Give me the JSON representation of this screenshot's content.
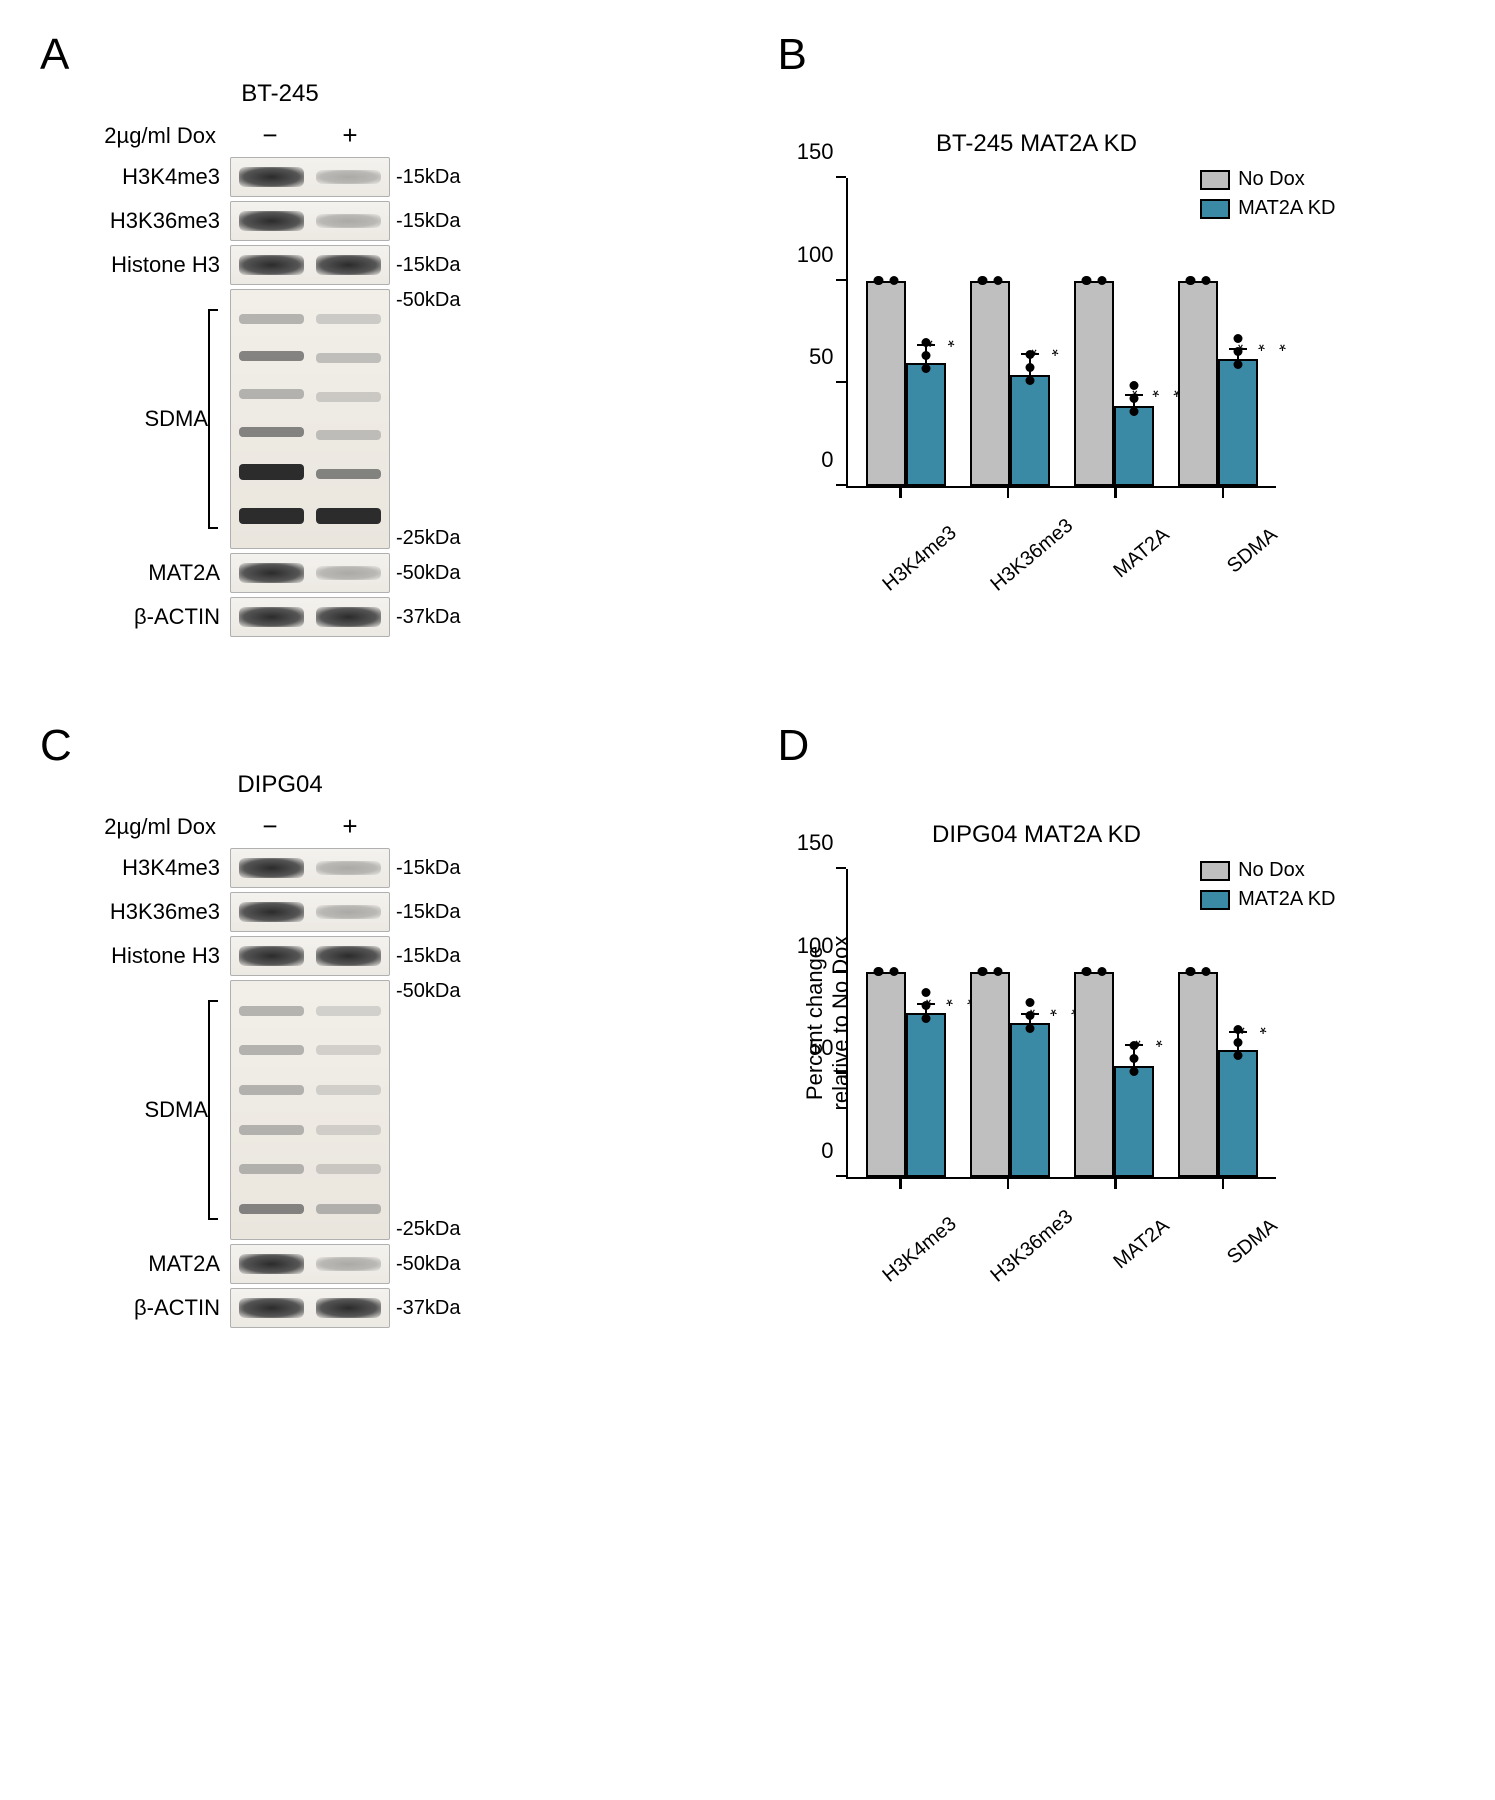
{
  "panels": {
    "A": {
      "letter": "A",
      "cell_line": "BT-245",
      "dox_header": "2µg/ml Dox",
      "minus": "−",
      "plus": "+",
      "rows": [
        {
          "label": "H3K4me3",
          "size": "-15kDa",
          "kd_faint": true
        },
        {
          "label": "H3K36me3",
          "size": "-15kDa",
          "kd_faint": true
        },
        {
          "label": "Histone H3",
          "size": "-15kDa",
          "kd_faint": false
        }
      ],
      "sdma_label": "SDMA",
      "sdma_top": "-50kDa",
      "sdma_bottom": "-25kDa",
      "rows2": [
        {
          "label": "MAT2A",
          "size": "-50kDa",
          "kd_faint": true
        },
        {
          "label": "β-ACTIN",
          "size": "-37kDa",
          "kd_faint": false
        }
      ]
    },
    "B": {
      "letter": "B",
      "title": "BT-245 MAT2A KD",
      "legend": {
        "ctrl": "No Dox",
        "kd": "MAT2A KD"
      },
      "ylim": [
        0,
        150
      ],
      "ytick_step": 50,
      "categories": [
        "H3K4me3",
        "H3K36me3",
        "MAT2A",
        "SDMA"
      ],
      "ctrl_values": [
        100,
        100,
        100,
        100
      ],
      "kd_values": [
        60,
        54,
        39,
        62
      ],
      "kd_err": [
        8,
        10,
        5,
        4
      ],
      "sig": [
        "**",
        "**",
        "****",
        "***"
      ],
      "colors": {
        "ctrl": "#bfbfbf",
        "kd": "#3a89a5",
        "axis": "#000000",
        "bg": "#ffffff"
      }
    },
    "C": {
      "letter": "C",
      "cell_line": "DIPG04",
      "dox_header": "2µg/ml Dox",
      "minus": "−",
      "plus": "+",
      "rows": [
        {
          "label": "H3K4me3",
          "size": "-15kDa",
          "kd_faint": true
        },
        {
          "label": "H3K36me3",
          "size": "-15kDa",
          "kd_faint": true
        },
        {
          "label": "Histone H3",
          "size": "-15kDa",
          "kd_faint": false
        }
      ],
      "sdma_label": "SDMA",
      "sdma_top": "-50kDa",
      "sdma_bottom": "-25kDa",
      "rows2": [
        {
          "label": "MAT2A",
          "size": "-50kDa",
          "kd_faint": true
        },
        {
          "label": "β-ACTIN",
          "size": "-37kDa",
          "kd_faint": false
        }
      ]
    },
    "D": {
      "letter": "D",
      "title": "DIPG04 MAT2A KD",
      "yaxis_title": "Percent change\nrelative to No Dox",
      "legend": {
        "ctrl": "No Dox",
        "kd": "MAT2A KD"
      },
      "ylim": [
        0,
        150
      ],
      "ytick_step": 50,
      "categories": [
        "H3K4me3",
        "H3K36me3",
        "MAT2A",
        "SDMA"
      ],
      "ctrl_values": [
        100,
        100,
        100,
        100
      ],
      "kd_values": [
        80,
        75,
        54,
        62
      ],
      "kd_err": [
        4,
        4,
        10,
        8
      ],
      "sig": [
        "***",
        "***",
        "**",
        "**"
      ],
      "colors": {
        "ctrl": "#bfbfbf",
        "kd": "#3a89a5",
        "axis": "#000000",
        "bg": "#ffffff"
      }
    }
  },
  "style": {
    "font_family": "Arial",
    "panel_letter_fontsize": 44,
    "label_fontsize": 22,
    "chart_title_fontsize": 24,
    "tick_fontsize": 22,
    "bar_border_width": 2,
    "axis_width": 2.5
  }
}
